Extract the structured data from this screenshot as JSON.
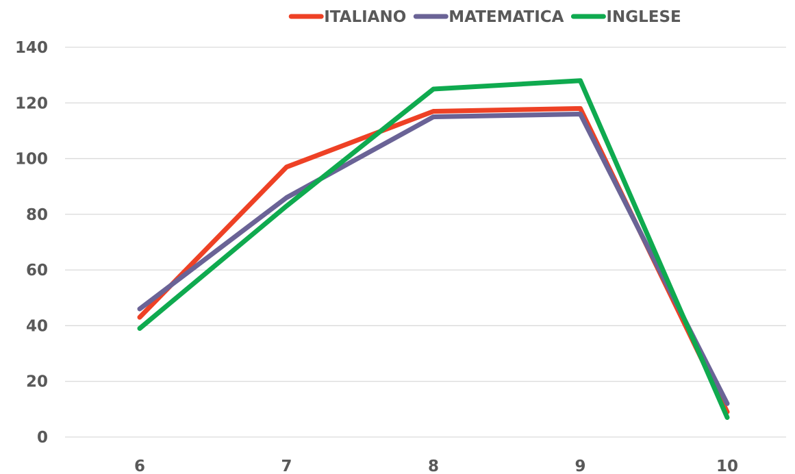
{
  "chart_data": {
    "type": "line",
    "title": "",
    "xlabel": "",
    "ylabel": "",
    "categories": [
      "6",
      "7",
      "8",
      "9",
      "10"
    ],
    "ylim": [
      0,
      140
    ],
    "yticks": [
      0,
      20,
      40,
      60,
      80,
      100,
      120,
      140
    ],
    "grid": true,
    "legend_position": "top",
    "series": [
      {
        "name": "ITALIANO",
        "color": "#ee4125",
        "values": [
          43,
          97,
          117,
          118,
          9
        ]
      },
      {
        "name": "MATEMATICA",
        "color": "#6a6396",
        "values": [
          46,
          86,
          115,
          116,
          12
        ]
      },
      {
        "name": "INGLESE",
        "color": "#0faa4f",
        "values": [
          39,
          83,
          125,
          128,
          7
        ]
      }
    ]
  }
}
